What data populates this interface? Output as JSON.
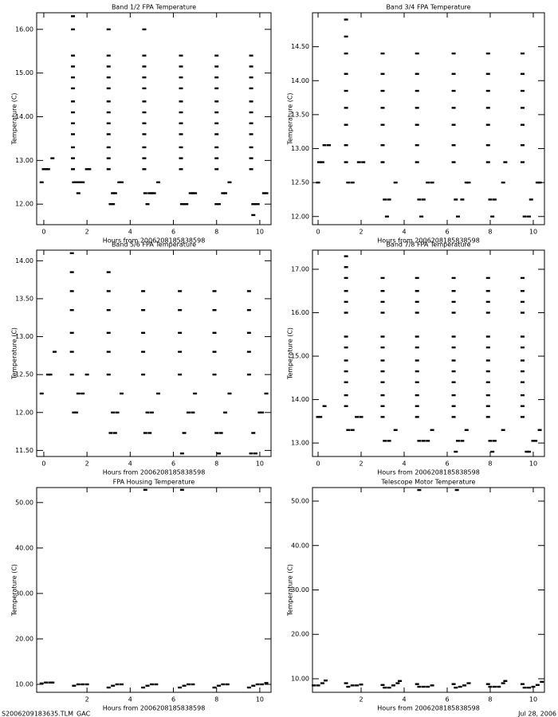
{
  "chart_data": [
    {
      "type": "scatter",
      "title": "Band 1/2 FPA Temperature",
      "x_label": "Hours from 2006208185838598",
      "y_label": "Temperature (C)",
      "color": "#000000",
      "xlim": [
        -0.33,
        10.52
      ],
      "ylim": [
        11.53,
        16.38
      ],
      "xticks": [
        0,
        2,
        4,
        6,
        8,
        10
      ],
      "yticks": [
        {
          "value": 12,
          "label": "12.00"
        },
        {
          "value": 13,
          "label": "13.00"
        },
        {
          "value": 14,
          "label": "14.00"
        },
        {
          "value": 15,
          "label": "15.00"
        },
        {
          "value": 16,
          "label": "16.00"
        }
      ],
      "x": [
        -0.1,
        0,
        0.1,
        0.2,
        0.4,
        1.35,
        1.35,
        1.35,
        1.35,
        1.35,
        1.35,
        1.35,
        1.35,
        1.35,
        1.35,
        1.35,
        1.35,
        1.35,
        1.4,
        1.5,
        1.6,
        1.7,
        1.8,
        1.6,
        2.0,
        2.1,
        3,
        3,
        3,
        3,
        3,
        3,
        3,
        3,
        3,
        3,
        3,
        3,
        3.1,
        3.2,
        3.2,
        3.3,
        3.5,
        3.6,
        4.65,
        4.65,
        4.65,
        4.65,
        4.65,
        4.65,
        4.65,
        4.65,
        4.65,
        4.65,
        4.65,
        4.65,
        4.7,
        4.9,
        5.0,
        5.1,
        4.8,
        5.3,
        6.35,
        6.35,
        6.35,
        6.35,
        6.35,
        6.35,
        6.35,
        6.35,
        6.35,
        6.35,
        6.35,
        6.4,
        6.5,
        6.6,
        6.8,
        6.9,
        7.0,
        8,
        8,
        8,
        8,
        8,
        8,
        8,
        8,
        8,
        8,
        8,
        8.0,
        8.1,
        8.3,
        8.4,
        8.6,
        9.6,
        9.6,
        9.6,
        9.6,
        9.6,
        9.6,
        9.6,
        9.6,
        9.6,
        9.6,
        9.6,
        9.7,
        9.8,
        9.9,
        9.7,
        10.2,
        10.3
      ],
      "y": [
        12.5,
        12.8,
        12.8,
        12.8,
        13.05,
        12.8,
        13.05,
        13.3,
        13.6,
        13.85,
        14.1,
        14.35,
        14.65,
        14.9,
        15.15,
        15.4,
        16.0,
        16.3,
        12.5,
        12.5,
        12.5,
        12.5,
        12.5,
        12.25,
        12.8,
        12.8,
        12.8,
        13.05,
        13.3,
        13.6,
        13.85,
        14.1,
        14.35,
        14.65,
        14.9,
        15.15,
        15.4,
        16.0,
        12.0,
        12.0,
        12.25,
        12.25,
        12.5,
        12.5,
        12.8,
        13.05,
        13.3,
        13.6,
        13.85,
        14.1,
        14.35,
        14.65,
        14.9,
        15.15,
        15.4,
        16.0,
        12.25,
        12.25,
        12.25,
        12.25,
        12.0,
        12.5,
        12.8,
        13.05,
        13.3,
        13.6,
        13.85,
        14.1,
        14.35,
        14.65,
        14.9,
        15.15,
        15.4,
        12.0,
        12.0,
        12.0,
        12.25,
        12.25,
        12.25,
        12.8,
        13.05,
        13.3,
        13.6,
        13.85,
        14.1,
        14.35,
        14.65,
        14.9,
        15.15,
        15.4,
        12.0,
        12.0,
        12.25,
        12.25,
        12.5,
        12.8,
        13.05,
        13.3,
        13.6,
        13.85,
        14.1,
        14.35,
        14.65,
        14.9,
        15.15,
        15.4,
        12.0,
        12.0,
        12.0,
        11.75,
        12.25,
        12.25
      ]
    },
    {
      "type": "scatter",
      "title": "Band 3/4 FPA Temperature",
      "x_label": "Hours from 2006208185838598",
      "y_label": "Temperature (C)",
      "color": "#000000",
      "xlim": [
        -0.26,
        10.52
      ],
      "ylim": [
        11.88,
        15.0
      ],
      "xticks": [
        0,
        2,
        4,
        6,
        8,
        10
      ],
      "yticks": [
        {
          "value": 12,
          "label": "12.00"
        },
        {
          "value": 12.5,
          "label": "12.50"
        },
        {
          "value": 13,
          "label": "13.00"
        },
        {
          "value": 13.5,
          "label": "13.50"
        },
        {
          "value": 14,
          "label": "14.00"
        },
        {
          "value": 14.5,
          "label": "14.50"
        }
      ],
      "x": [
        0,
        0.05,
        0.2,
        0.3,
        0.5,
        1.3,
        1.3,
        1.3,
        1.3,
        1.3,
        1.3,
        1.3,
        1.3,
        1.3,
        1.4,
        1.6,
        1.9,
        2.1,
        3,
        3,
        3,
        3,
        3,
        3,
        3,
        3.1,
        3.3,
        3.2,
        3.6,
        4.6,
        4.6,
        4.6,
        4.6,
        4.6,
        4.6,
        4.6,
        4.7,
        4.9,
        4.8,
        5.1,
        5.3,
        6.3,
        6.3,
        6.3,
        6.3,
        6.3,
        6.3,
        6.3,
        6.4,
        6.5,
        6.7,
        6.9,
        7.0,
        7.9,
        7.9,
        7.9,
        7.9,
        7.9,
        7.9,
        7.9,
        8.0,
        8.2,
        8.1,
        8.6,
        8.7,
        9.5,
        9.5,
        9.5,
        9.5,
        9.5,
        9.5,
        9.5,
        9.6,
        9.8,
        9.9,
        10.2,
        10.3
      ],
      "y": [
        12.5,
        12.8,
        12.8,
        13.05,
        13.05,
        12.8,
        13.05,
        13.35,
        13.6,
        13.85,
        14.1,
        14.4,
        14.65,
        14.9,
        12.5,
        12.5,
        12.8,
        12.8,
        12.8,
        13.05,
        13.35,
        13.6,
        13.85,
        14.1,
        14.4,
        12.25,
        12.25,
        12.0,
        12.5,
        12.8,
        13.05,
        13.35,
        13.6,
        13.85,
        14.1,
        14.4,
        12.25,
        12.25,
        12.0,
        12.5,
        12.5,
        12.8,
        13.05,
        13.35,
        13.6,
        13.85,
        14.1,
        14.4,
        12.25,
        12.0,
        12.25,
        12.5,
        12.5,
        12.8,
        13.05,
        13.35,
        13.6,
        13.85,
        14.1,
        14.4,
        12.25,
        12.25,
        12.0,
        12.5,
        12.8,
        12.8,
        13.05,
        13.35,
        13.6,
        13.85,
        14.1,
        14.4,
        12.0,
        12.0,
        12.25,
        12.5,
        12.5
      ]
    },
    {
      "type": "scatter",
      "title": "Band 5/6 FPA Temperature",
      "x_label": "Hours from 2006208185838598",
      "y_label": "Temperature (C)",
      "color": "#000000",
      "xlim": [
        -0.33,
        10.52
      ],
      "ylim": [
        11.42,
        14.14
      ],
      "xticks": [
        0,
        2,
        4,
        6,
        8,
        10
      ],
      "yticks": [
        {
          "value": 11.5,
          "label": "11.50"
        },
        {
          "value": 12,
          "label": "12.00"
        },
        {
          "value": 12.5,
          "label": "12.50"
        },
        {
          "value": 13,
          "label": "13.00"
        },
        {
          "value": 13.5,
          "label": "13.50"
        },
        {
          "value": 14,
          "label": "14.00"
        }
      ],
      "x": [
        -0.1,
        0.2,
        0.3,
        0.5,
        1.3,
        1.3,
        1.3,
        1.3,
        1.3,
        1.3,
        1.3,
        1.4,
        1.5,
        1.6,
        1.8,
        2.0,
        3,
        3,
        3,
        3,
        3,
        3,
        3.1,
        3.3,
        3.2,
        3.4,
        3.6,
        4.6,
        4.6,
        4.6,
        4.6,
        4.6,
        4.7,
        4.9,
        4.8,
        5.0,
        5.3,
        6.3,
        6.3,
        6.3,
        6.3,
        6.3,
        6.4,
        6.5,
        6.7,
        6.9,
        7.0,
        7.9,
        7.9,
        7.9,
        7.9,
        7.9,
        8.0,
        8.2,
        8.1,
        8.4,
        8.6,
        9.5,
        9.5,
        9.5,
        9.5,
        9.5,
        9.6,
        9.8,
        9.7,
        10.0,
        10.1,
        10.3
      ],
      "y": [
        12.25,
        12.5,
        12.5,
        12.8,
        12.5,
        12.8,
        13.05,
        13.35,
        13.6,
        13.85,
        14.1,
        12.0,
        12.0,
        12.25,
        12.25,
        12.5,
        12.5,
        12.8,
        13.05,
        13.35,
        13.6,
        13.85,
        11.73,
        11.73,
        12.0,
        12.0,
        12.25,
        12.5,
        12.8,
        13.05,
        13.35,
        13.6,
        11.73,
        11.73,
        12.0,
        12.0,
        12.25,
        12.5,
        12.8,
        13.05,
        13.35,
        13.6,
        11.46,
        11.73,
        12.0,
        12.0,
        12.25,
        12.5,
        12.8,
        13.05,
        13.35,
        13.6,
        11.73,
        11.73,
        11.46,
        12.0,
        12.25,
        12.5,
        12.8,
        13.05,
        13.35,
        13.6,
        11.46,
        11.46,
        11.73,
        12.0,
        12.0,
        12.25
      ]
    },
    {
      "type": "scatter",
      "title": "Band 7/8 FPA Temperature",
      "x_label": "Hours from 2006208185838598",
      "y_label": "Temperature (C)",
      "color": "#000000",
      "xlim": [
        -0.26,
        10.52
      ],
      "ylim": [
        12.69,
        17.44
      ],
      "xticks": [
        0,
        2,
        4,
        6,
        8,
        10
      ],
      "yticks": [
        {
          "value": 13,
          "label": "13.00"
        },
        {
          "value": 14,
          "label": "14.00"
        },
        {
          "value": 15,
          "label": "15.00"
        },
        {
          "value": 16,
          "label": "16.00"
        },
        {
          "value": 17,
          "label": "17.00"
        }
      ],
      "x": [
        0,
        0.1,
        0.3,
        1.3,
        1.3,
        1.3,
        1.3,
        1.3,
        1.3,
        1.3,
        1.3,
        1.3,
        1.3,
        1.3,
        1.3,
        1.3,
        1.4,
        1.6,
        1.8,
        2.0,
        3,
        3,
        3,
        3,
        3,
        3,
        3,
        3,
        3,
        3,
        3,
        3,
        3.1,
        3.3,
        3.6,
        4.6,
        4.6,
        4.6,
        4.6,
        4.6,
        4.6,
        4.6,
        4.6,
        4.6,
        4.6,
        4.6,
        4.6,
        4.7,
        4.9,
        5.1,
        5.3,
        6.3,
        6.3,
        6.3,
        6.3,
        6.3,
        6.3,
        6.3,
        6.3,
        6.3,
        6.3,
        6.3,
        6.3,
        6.4,
        6.5,
        6.7,
        6.9,
        7.9,
        7.9,
        7.9,
        7.9,
        7.9,
        7.9,
        7.9,
        7.9,
        7.9,
        7.9,
        7.9,
        7.9,
        8.0,
        8.2,
        8.1,
        8.6,
        9.5,
        9.5,
        9.5,
        9.5,
        9.5,
        9.5,
        9.5,
        9.5,
        9.5,
        9.5,
        9.5,
        9.5,
        9.7,
        9.8,
        10.0,
        10.1,
        10.3
      ],
      "y": [
        13.6,
        13.6,
        13.85,
        13.85,
        14.1,
        14.4,
        14.65,
        14.9,
        15.2,
        15.45,
        16.0,
        16.25,
        16.5,
        16.8,
        17.05,
        17.3,
        13.3,
        13.3,
        13.6,
        13.6,
        13.6,
        13.85,
        14.1,
        14.4,
        14.65,
        14.9,
        15.2,
        15.45,
        16.0,
        16.25,
        16.5,
        16.8,
        13.05,
        13.05,
        13.3,
        13.6,
        13.85,
        14.1,
        14.4,
        14.65,
        14.9,
        15.2,
        15.45,
        16.0,
        16.25,
        16.5,
        16.8,
        13.05,
        13.05,
        13.05,
        13.3,
        13.6,
        13.85,
        14.1,
        14.4,
        14.65,
        14.9,
        15.2,
        15.45,
        16.0,
        16.25,
        16.5,
        16.8,
        12.8,
        13.05,
        13.05,
        13.3,
        13.6,
        13.85,
        14.1,
        14.4,
        14.65,
        14.9,
        15.2,
        15.45,
        16.0,
        16.25,
        16.5,
        16.8,
        13.05,
        13.05,
        12.8,
        13.3,
        13.6,
        13.85,
        14.1,
        14.4,
        14.65,
        14.9,
        15.2,
        15.45,
        16.0,
        16.25,
        16.5,
        16.8,
        12.8,
        12.8,
        13.05,
        13.05,
        13.3
      ]
    },
    {
      "type": "scatter",
      "title": "FPA Housing Temperature",
      "x_label": "Hours from 2006208185838598",
      "y_label": "Temperature (C)",
      "color": "#000000",
      "xlim": [
        -0.33,
        10.52
      ],
      "ylim": [
        8.25,
        53.3
      ],
      "xticks": [
        2,
        4,
        6,
        8,
        10
      ],
      "yticks": [
        {
          "value": 10,
          "label": "10.00"
        },
        {
          "value": 20,
          "label": "20.00"
        },
        {
          "value": 30,
          "label": "30.00"
        },
        {
          "value": 40,
          "label": "40.00"
        },
        {
          "value": 50,
          "label": "50.00"
        }
      ],
      "x": [
        -0.1,
        0.1,
        0.3,
        0.4,
        1.4,
        1.6,
        1.8,
        2.0,
        3.0,
        3.2,
        3.4,
        3.6,
        4.6,
        4.8,
        5.0,
        5.2,
        4.7,
        6.3,
        6.5,
        6.7,
        6.9,
        6.4,
        7.9,
        8.1,
        8.3,
        8.5,
        9.5,
        9.7,
        9.9,
        10.1,
        10.3
      ],
      "y": [
        10.2,
        10.4,
        10.4,
        10.4,
        9.7,
        10.0,
        10.0,
        10.0,
        9.3,
        9.7,
        10.0,
        10.0,
        9.3,
        9.7,
        10.0,
        10.0,
        52.8,
        9.3,
        9.7,
        10.0,
        10.0,
        52.8,
        9.3,
        9.7,
        10.0,
        10.0,
        9.3,
        9.7,
        10.0,
        10.0,
        10.3
      ]
    },
    {
      "type": "scatter",
      "title": "Telescope Motor Temperature",
      "x_label": "Hours from 2006208185838598",
      "y_label": "Temperature (C)",
      "color": "#000000",
      "xlim": [
        -0.26,
        10.52
      ],
      "ylim": [
        6.95,
        53.05
      ],
      "xticks": [
        2,
        4,
        6,
        8,
        10
      ],
      "yticks": [
        {
          "value": 10,
          "label": "10.00"
        },
        {
          "value": 20,
          "label": "20.00"
        },
        {
          "value": 30,
          "label": "30.00"
        },
        {
          "value": 40,
          "label": "40.00"
        },
        {
          "value": 50,
          "label": "50.00"
        }
      ],
      "x": [
        -0.2,
        0.0,
        0.2,
        0.35,
        1.3,
        1.4,
        1.6,
        1.8,
        2.0,
        3.0,
        3.1,
        3.3,
        3.5,
        3.7,
        3.8,
        4.6,
        4.7,
        4.9,
        5.1,
        5.3,
        4.7,
        6.3,
        6.4,
        6.6,
        6.8,
        7.0,
        6.45,
        7.9,
        8.0,
        8.2,
        8.4,
        8.6,
        8.7,
        9.5,
        9.6,
        9.8,
        10.0,
        10.2,
        10.4
      ],
      "y": [
        8.5,
        8.5,
        9.0,
        9.6,
        9.0,
        8.2,
        8.5,
        8.5,
        8.7,
        8.6,
        8.0,
        8.0,
        8.5,
        9.0,
        9.5,
        8.8,
        8.2,
        8.2,
        8.2,
        8.5,
        52.5,
        8.8,
        8.0,
        8.2,
        8.5,
        9.0,
        52.5,
        8.8,
        8.2,
        8.2,
        8.2,
        9.0,
        9.5,
        8.8,
        8.0,
        8.0,
        8.2,
        8.6,
        9.3
      ]
    }
  ],
  "footer": {
    "left": "S2006209183635.TLM_GAC",
    "right": "Jul 28, 2006"
  }
}
